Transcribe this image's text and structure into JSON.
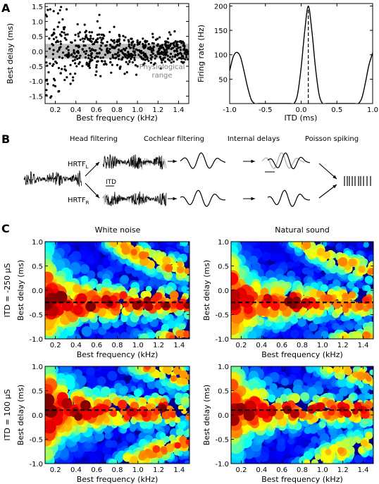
{
  "panels": {
    "A": {
      "letter": "A",
      "left": {
        "type": "scatter",
        "xlabel": "Best frequency (kHz)",
        "ylabel": "Best delay (ms)",
        "xlim": [
          0.1,
          1.5
        ],
        "ylim": [
          -1.75,
          1.6
        ],
        "xticks": [
          "0.2",
          "0.4",
          "0.6",
          "0.8",
          "1.0",
          "1.2",
          "1.4"
        ],
        "yticks": [
          "1.5",
          "1.0",
          "0.5",
          "0.0",
          "-0.5",
          "-1.0",
          "-1.5"
        ],
        "band": {
          "range": [
            -0.25,
            0.25
          ],
          "label_line1": "Physiological",
          "label_line2": "range",
          "color": "#bfbfbf"
        },
        "points": {
          "count": 600,
          "color": "#000000"
        }
      },
      "right": {
        "type": "line",
        "xlabel": "ITD (ms)",
        "ylabel": "Firing rate (Hz)",
        "xlim": [
          -1.0,
          1.0
        ],
        "ylim": [
          0,
          205
        ],
        "xticks": [
          "-1.0",
          "-0.5",
          "0.0",
          "0.5",
          "1.0"
        ],
        "yticks": [
          "200",
          "150",
          "100",
          "50"
        ],
        "peak_itd": 0.1,
        "series": [
          {
            "x": [
              -1.0,
              -0.95,
              -0.9,
              -0.85,
              -0.8,
              -0.75,
              -0.7,
              -0.65,
              -0.6,
              -0.55,
              -0.5,
              -0.45,
              -0.4,
              -0.35,
              -0.3,
              -0.25,
              -0.2,
              -0.15,
              -0.1,
              -0.05,
              0.0,
              0.05,
              0.1,
              0.15,
              0.2,
              0.25,
              0.3,
              0.35,
              0.4,
              0.45,
              0.5,
              0.55,
              0.6,
              0.65,
              0.7,
              0.75,
              0.8,
              0.85,
              0.9,
              0.95,
              1.0
            ],
            "y": [
              67,
              96,
              105,
              96,
              67,
              34,
              9,
              0,
              0,
              0,
              0,
              0,
              0,
              0,
              0,
              0,
              0,
              0,
              0,
              19,
              74,
              149,
              200,
              149,
              74,
              19,
              0,
              0,
              0,
              0,
              0,
              0,
              0,
              0,
              0,
              0,
              0,
              12,
              44,
              80,
              104
            ]
          }
        ]
      }
    },
    "B": {
      "letter": "B",
      "steps": [
        "Head filtering",
        "Cochlear filtering",
        "Internal delays",
        "Poisson spiking"
      ],
      "hrtf_base": "HRTF",
      "hrtf_left_sub": "L",
      "hrtf_right_sub": "R",
      "itd_label": "ITD"
    },
    "C": {
      "letter": "C",
      "col_titles": [
        "White noise",
        "Natural sound"
      ],
      "row_labels": [
        "ITD = -250 µS",
        "ITD = 100 µS"
      ],
      "xlabel": "Best frequency (kHz)",
      "ylabel": "Best delay (ms)",
      "xticks": [
        "0.2",
        "0.4",
        "0.6",
        "0.8",
        "1.0",
        "1.2",
        "1.4"
      ],
      "yticks": [
        "1.0",
        "0.5",
        "0.0",
        "-0.5",
        "-1.0"
      ],
      "xlim": [
        0.1,
        1.5
      ],
      "ylim": [
        -1.0,
        1.0
      ],
      "itd_lines_ms": [
        -0.25,
        0.1
      ],
      "colormap": "jet"
    }
  },
  "chart_data": [
    {
      "type": "scatter",
      "title": "",
      "xlabel": "Best frequency (kHz)",
      "ylabel": "Best delay (ms)",
      "xlim": [
        0.1,
        1.5
      ],
      "ylim": [
        -1.75,
        1.6
      ],
      "annotation": "Physiological range",
      "band_y": [
        -0.25,
        0.25
      ]
    },
    {
      "type": "line",
      "title": "",
      "xlabel": "ITD (ms)",
      "ylabel": "Firing rate (Hz)",
      "xlim": [
        -1.0,
        1.0
      ],
      "ylim": [
        0,
        205
      ],
      "x": [
        -1.0,
        -0.9,
        -0.7,
        -0.5,
        -0.05,
        0.1,
        0.25,
        0.8,
        0.9,
        1.0
      ],
      "y": [
        67,
        105,
        9,
        0,
        19,
        200,
        19,
        0,
        44,
        104
      ]
    },
    {
      "type": "heatmap",
      "title": "White noise",
      "ylabel": "Best delay (ms)",
      "xlabel": "Best frequency (kHz)",
      "condition": "ITD = -250 µS",
      "itd_ms": -0.25
    },
    {
      "type": "heatmap",
      "title": "Natural sound",
      "ylabel": "Best delay (ms)",
      "xlabel": "Best frequency (kHz)",
      "condition": "ITD = -250 µS",
      "itd_ms": -0.25
    },
    {
      "type": "heatmap",
      "title": "White noise",
      "ylabel": "Best delay (ms)",
      "xlabel": "Best frequency (kHz)",
      "condition": "ITD = 100 µS",
      "itd_ms": 0.1
    },
    {
      "type": "heatmap",
      "title": "Natural sound",
      "ylabel": "Best delay (ms)",
      "xlabel": "Best frequency (kHz)",
      "condition": "ITD = 100 µS",
      "itd_ms": 0.1
    }
  ]
}
